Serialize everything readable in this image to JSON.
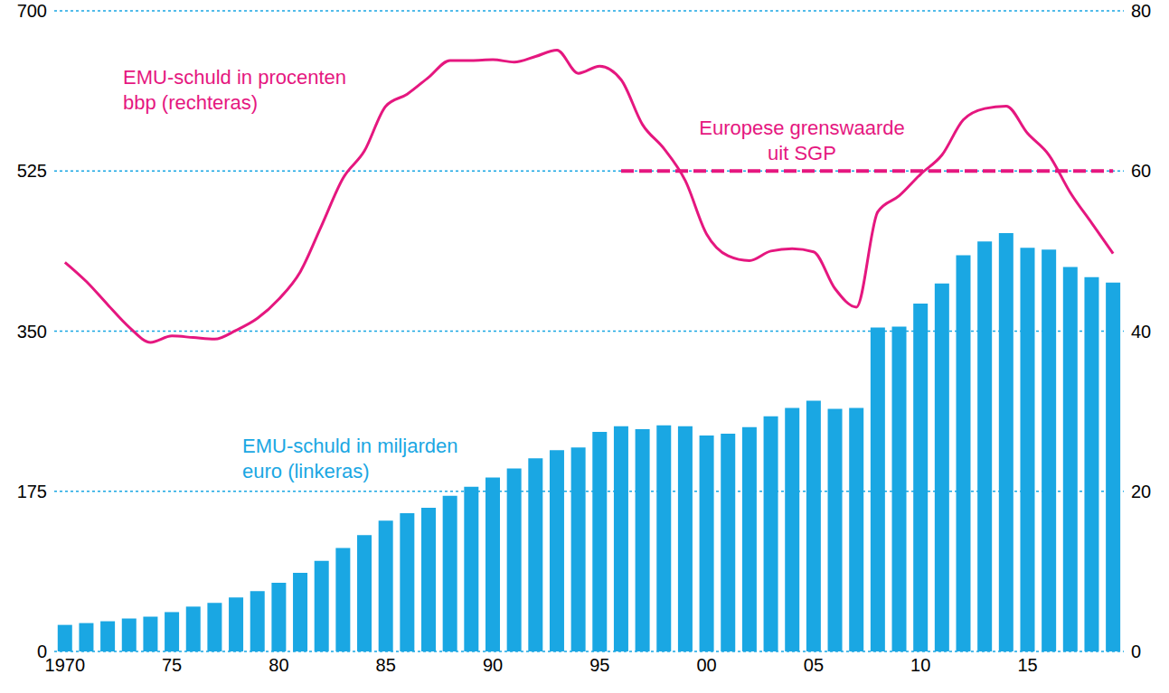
{
  "chart_data": {
    "type": "bar",
    "categories": [
      "1970",
      null,
      null,
      null,
      null,
      "75",
      null,
      null,
      null,
      null,
      "80",
      null,
      null,
      null,
      null,
      "85",
      null,
      null,
      null,
      null,
      "90",
      null,
      null,
      null,
      null,
      "95",
      null,
      null,
      null,
      null,
      "00",
      null,
      null,
      null,
      null,
      "05",
      null,
      null,
      null,
      null,
      "10",
      null,
      null,
      null,
      null,
      "15",
      null,
      null,
      null,
      null
    ],
    "series": [
      {
        "name": "EMU-schuld in miljarden\neuro (linkeras)",
        "type": "bar",
        "axis": "y",
        "color": "#1aa7e3",
        "values": [
          29,
          31,
          33,
          36,
          38,
          43,
          49,
          53,
          59,
          66,
          75,
          86,
          99,
          113,
          127,
          143,
          151,
          157,
          170,
          180,
          190,
          200,
          211,
          220,
          223,
          240,
          246,
          243,
          247,
          246,
          236,
          238,
          245,
          257,
          266,
          274,
          265,
          266,
          354,
          355,
          380,
          402,
          433,
          448,
          457,
          441,
          439,
          420,
          409,
          403
        ]
      },
      {
        "name": "EMU-schuld in procenten\nbbp (rechteras)",
        "type": "line",
        "axis": "y2",
        "color": "#e5177f",
        "line_style": "solid",
        "values": [
          48.6,
          46.2,
          43.3,
          40.5,
          38.6,
          39.4,
          39.2,
          39.0,
          40.1,
          41.6,
          44.0,
          47.4,
          53.2,
          59.1,
          62.5,
          68.1,
          69.6,
          71.7,
          73.8,
          73.8,
          73.9,
          73.6,
          74.3,
          75.1,
          72.2,
          73.1,
          71.4,
          65.8,
          62.8,
          58.8,
          52.1,
          49.4,
          48.8,
          50.0,
          50.3,
          49.9,
          45.3,
          43.0,
          54.9,
          56.9,
          59.6,
          62.0,
          66.4,
          67.8,
          68.1,
          64.7,
          62.0,
          57.3,
          53.5,
          49.7
        ]
      },
      {
        "name": "Europese grenswaarde\nuit SGP",
        "type": "line",
        "axis": "y2",
        "color": "#e5177f",
        "line_style": "dashed",
        "values": [
          null,
          null,
          null,
          null,
          null,
          null,
          null,
          null,
          null,
          null,
          null,
          null,
          null,
          null,
          null,
          null,
          null,
          null,
          null,
          null,
          null,
          null,
          null,
          null,
          null,
          null,
          60,
          60,
          60,
          60,
          60,
          60,
          60,
          60,
          60,
          60,
          60,
          60,
          60,
          60,
          60,
          60,
          60,
          60,
          60,
          60,
          60,
          60,
          60,
          60
        ]
      }
    ],
    "ylim": [
      0,
      700
    ],
    "yticks": [
      0,
      175,
      350,
      525,
      700
    ],
    "y2lim": [
      0,
      80
    ],
    "y2ticks": [
      0,
      20,
      40,
      60,
      80
    ],
    "grid": true
  }
}
